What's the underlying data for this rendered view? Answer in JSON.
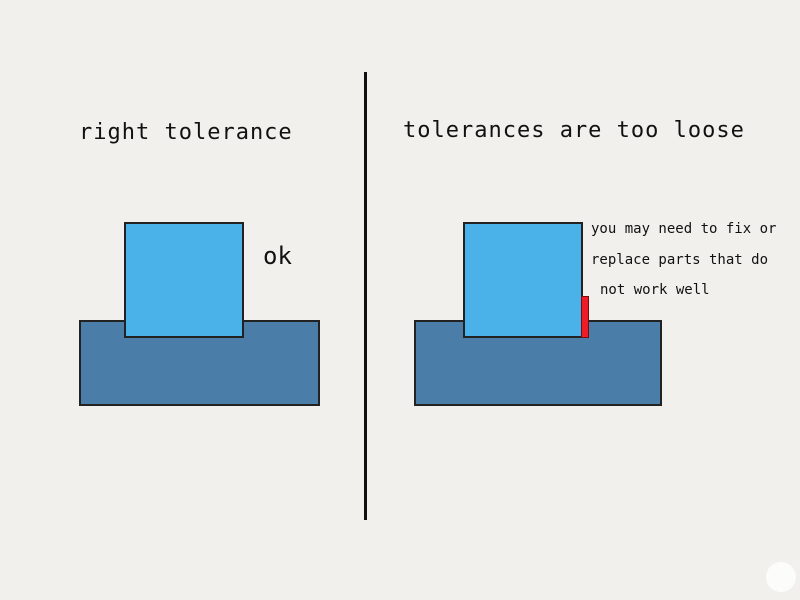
{
  "left_panel": {
    "title": "right tolerance",
    "label": "ok"
  },
  "right_panel": {
    "title": "tolerances are too loose",
    "note_lines": [
      "you may need to fix or",
      "replace parts that do",
      "not work well"
    ]
  },
  "colors": {
    "background": "#f1f0ec",
    "base_block": "#4a7ea8",
    "fitted_part": "#4ab2e8",
    "gap_highlight": "#ee1c25",
    "divider": "#111111"
  }
}
